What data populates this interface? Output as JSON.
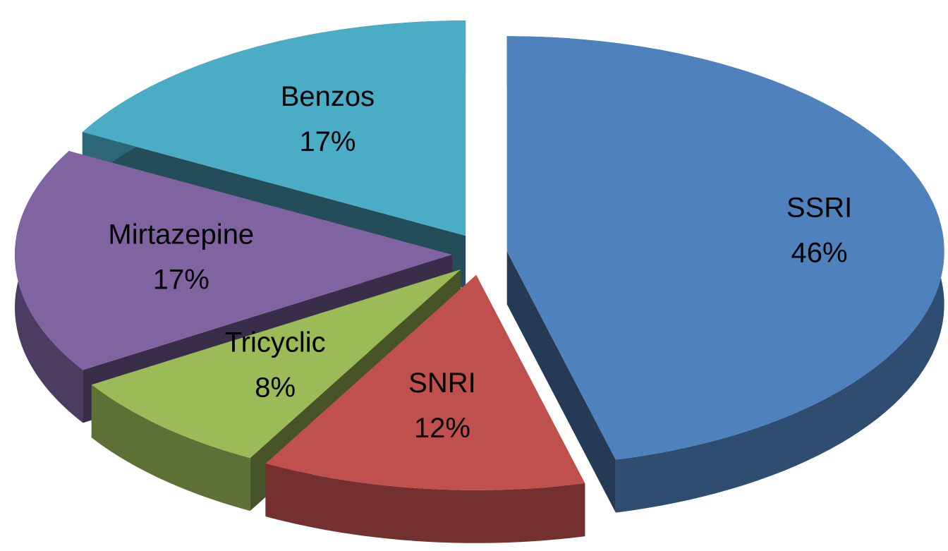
{
  "chart_data": {
    "type": "pie",
    "categories": [
      "SSRI",
      "SNRI",
      "Tricyclic",
      "Mirtazepine",
      "Benzos"
    ],
    "values": [
      46,
      12,
      8,
      17,
      17
    ],
    "value_labels": [
      "46%",
      "12%",
      "8%",
      "17%",
      "17%"
    ],
    "colors": [
      "#4f81bd",
      "#c0504d",
      "#9bbb59",
      "#8064a2",
      "#4bacc6"
    ]
  }
}
